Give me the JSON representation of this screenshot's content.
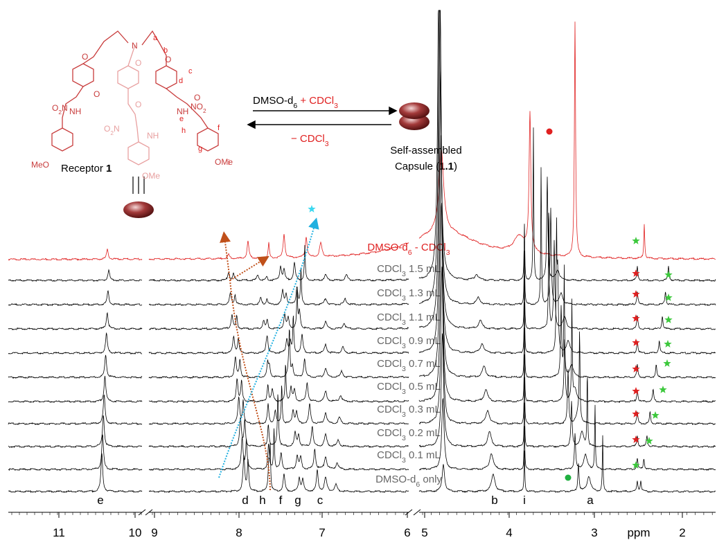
{
  "scheme": {
    "forward_black": [
      "DMSO-d",
      "6"
    ],
    "forward_red": [
      " + CDCl",
      "3"
    ],
    "reverse": [
      "− CDCl",
      "3"
    ],
    "receptor_label": "Receptor ",
    "receptor_number": "1",
    "capsule_line1": "Self-assembled",
    "capsule_line2_start": "Capsule (",
    "capsule_number": "1.1",
    "capsule_line2_end": ")",
    "letters": [
      "a",
      "b",
      "c",
      "d",
      "e",
      "f",
      "g",
      "h",
      "i"
    ],
    "groups": [
      [
        "N"
      ],
      [
        "O"
      ],
      [
        "O"
      ],
      [
        "O"
      ],
      [
        "O"
      ],
      [
        "O"
      ],
      [
        "O"
      ],
      [
        "NH"
      ],
      [
        "NH"
      ],
      [
        "NH"
      ],
      [
        "O",
        "2",
        "N"
      ],
      [
        "NO",
        "2"
      ],
      [
        "O",
        "2",
        "N"
      ],
      [
        "MeO"
      ],
      [
        "OMe"
      ],
      [
        "OMe"
      ]
    ]
  },
  "spectra": {
    "labels": [
      [
        "DMSO-d",
        "6",
        " - CDCl",
        "3"
      ],
      [
        "CDCl",
        "3",
        " 1.5 mL"
      ],
      [
        "CDCl",
        "3",
        " 1.3 mL"
      ],
      [
        "CDCl",
        "3",
        " 1.1 mL"
      ],
      [
        "CDCl",
        "3",
        " 0.9 mL"
      ],
      [
        "CDCl",
        "3",
        " 0.7 mL"
      ],
      [
        "CDCl",
        "3",
        " 0.5 mL"
      ],
      [
        "CDCl",
        "3",
        " 0.3 mL"
      ],
      [
        "CDCl",
        "3",
        " 0.2 mL"
      ],
      [
        "CDCl",
        "3",
        " 0.1 mL"
      ],
      [
        "DMSO-d",
        "6",
        " only"
      ]
    ],
    "peak_letters": [
      "e",
      "d",
      "h",
      "f",
      "g",
      "c",
      "b",
      "i",
      "a"
    ]
  },
  "axis": {
    "ticks": [
      11,
      10,
      9,
      8,
      7,
      6,
      5,
      4,
      3,
      2
    ],
    "unit": "ppm"
  }
}
